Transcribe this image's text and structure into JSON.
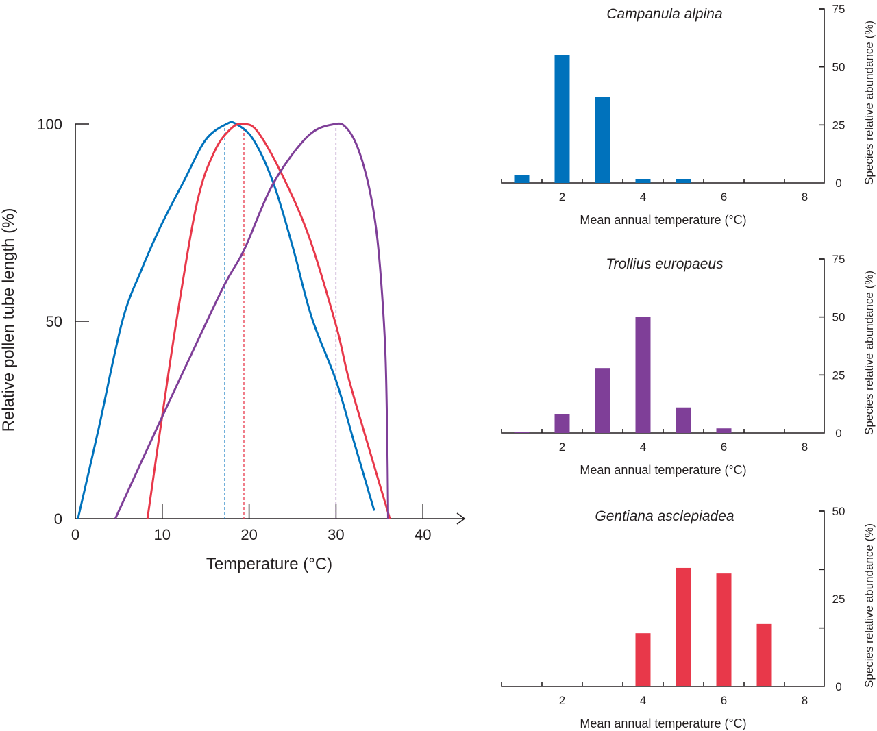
{
  "chart_data": [
    {
      "type": "line",
      "xlabel": "Temperature (°C)",
      "ylabel": "Relative pollen tube length (%)",
      "xlim": [
        0,
        45
      ],
      "ylim": [
        0,
        100
      ],
      "xticks": [
        0,
        10,
        20,
        30,
        40
      ],
      "yticks": [
        0,
        50,
        100
      ],
      "grid": false,
      "series": [
        {
          "color": "#0072bc",
          "optimum": 17.2,
          "points": [
            [
              0.3,
              0
            ],
            [
              2.7,
              23
            ],
            [
              5.4,
              50
            ],
            [
              7.6,
              63
            ],
            [
              9.8,
              74
            ],
            [
              12.6,
              86
            ],
            [
              15,
              96
            ],
            [
              17.4,
              100
            ],
            [
              18.5,
              100
            ],
            [
              20.5,
              96
            ],
            [
              22.8,
              85
            ],
            [
              25,
              69
            ],
            [
              27.2,
              51
            ],
            [
              30,
              35
            ],
            [
              32,
              20
            ],
            [
              34.4,
              2
            ]
          ]
        },
        {
          "color": "#e8384a",
          "optimum": 19.4,
          "points": [
            [
              8.3,
              0
            ],
            [
              9.8,
              23
            ],
            [
              11.7,
              51
            ],
            [
              14,
              80
            ],
            [
              16,
              93
            ],
            [
              18,
              99
            ],
            [
              19.5,
              100
            ],
            [
              21,
              98
            ],
            [
              23.6,
              88
            ],
            [
              26.8,
              72
            ],
            [
              30,
              49
            ],
            [
              31.4,
              36
            ],
            [
              33.5,
              20
            ],
            [
              36.2,
              0
            ]
          ]
        },
        {
          "color": "#7f3f98",
          "optimum": 30,
          "points": [
            [
              4.6,
              0
            ],
            [
              9.4,
              23
            ],
            [
              13,
              40
            ],
            [
              17.1,
              59
            ],
            [
              19.4,
              68
            ],
            [
              22.8,
              85
            ],
            [
              26.8,
              97
            ],
            [
              29.9,
              100
            ],
            [
              31.2,
              99
            ],
            [
              32.5,
              94
            ],
            [
              33.8,
              84
            ],
            [
              34.7,
              72
            ],
            [
              35.3,
              57
            ],
            [
              35.7,
              41
            ],
            [
              35.9,
              20
            ],
            [
              36,
              0
            ]
          ]
        }
      ]
    },
    {
      "type": "bar",
      "title": "Campanula alpina",
      "xlabel": "Mean annual temperature (°C)",
      "ylabel": "Species relative abundance (%)",
      "color": "#0072bc",
      "categories": [
        1,
        2,
        3,
        4,
        5,
        6,
        7,
        8
      ],
      "values": [
        3.5,
        55,
        37,
        1.5,
        1.5,
        0,
        0,
        0
      ],
      "xticks": [
        2,
        4,
        6,
        8
      ],
      "yticks": [
        0,
        25,
        50,
        75
      ],
      "ylim": [
        0,
        75
      ]
    },
    {
      "type": "bar",
      "title": "Trollius europaeus",
      "xlabel": "Mean annual temperature (°C)",
      "ylabel": "Species relative abundance (%)",
      "color": "#7f3f98",
      "categories": [
        1,
        2,
        3,
        4,
        5,
        6,
        7,
        8
      ],
      "values": [
        0.5,
        8,
        28,
        50,
        11,
        2,
        0,
        0
      ],
      "xticks": [
        2,
        4,
        6,
        8
      ],
      "yticks": [
        0,
        25,
        50,
        75
      ],
      "ylim": [
        0,
        75
      ]
    },
    {
      "type": "bar",
      "title": "Gentiana asclepiadea",
      "xlabel": "Mean annual temperature (°C)",
      "ylabel": "Species relative abundance (%)",
      "color": "#e8384a",
      "categories": [
        1,
        2,
        3,
        4,
        5,
        6,
        7,
        8
      ],
      "values": [
        0,
        0,
        0,
        15.2,
        33.8,
        32.2,
        17.8,
        0
      ],
      "xticks": [
        2,
        4,
        6,
        8
      ],
      "yticks": [
        0,
        25,
        50
      ],
      "ylim": [
        0,
        50
      ]
    }
  ]
}
